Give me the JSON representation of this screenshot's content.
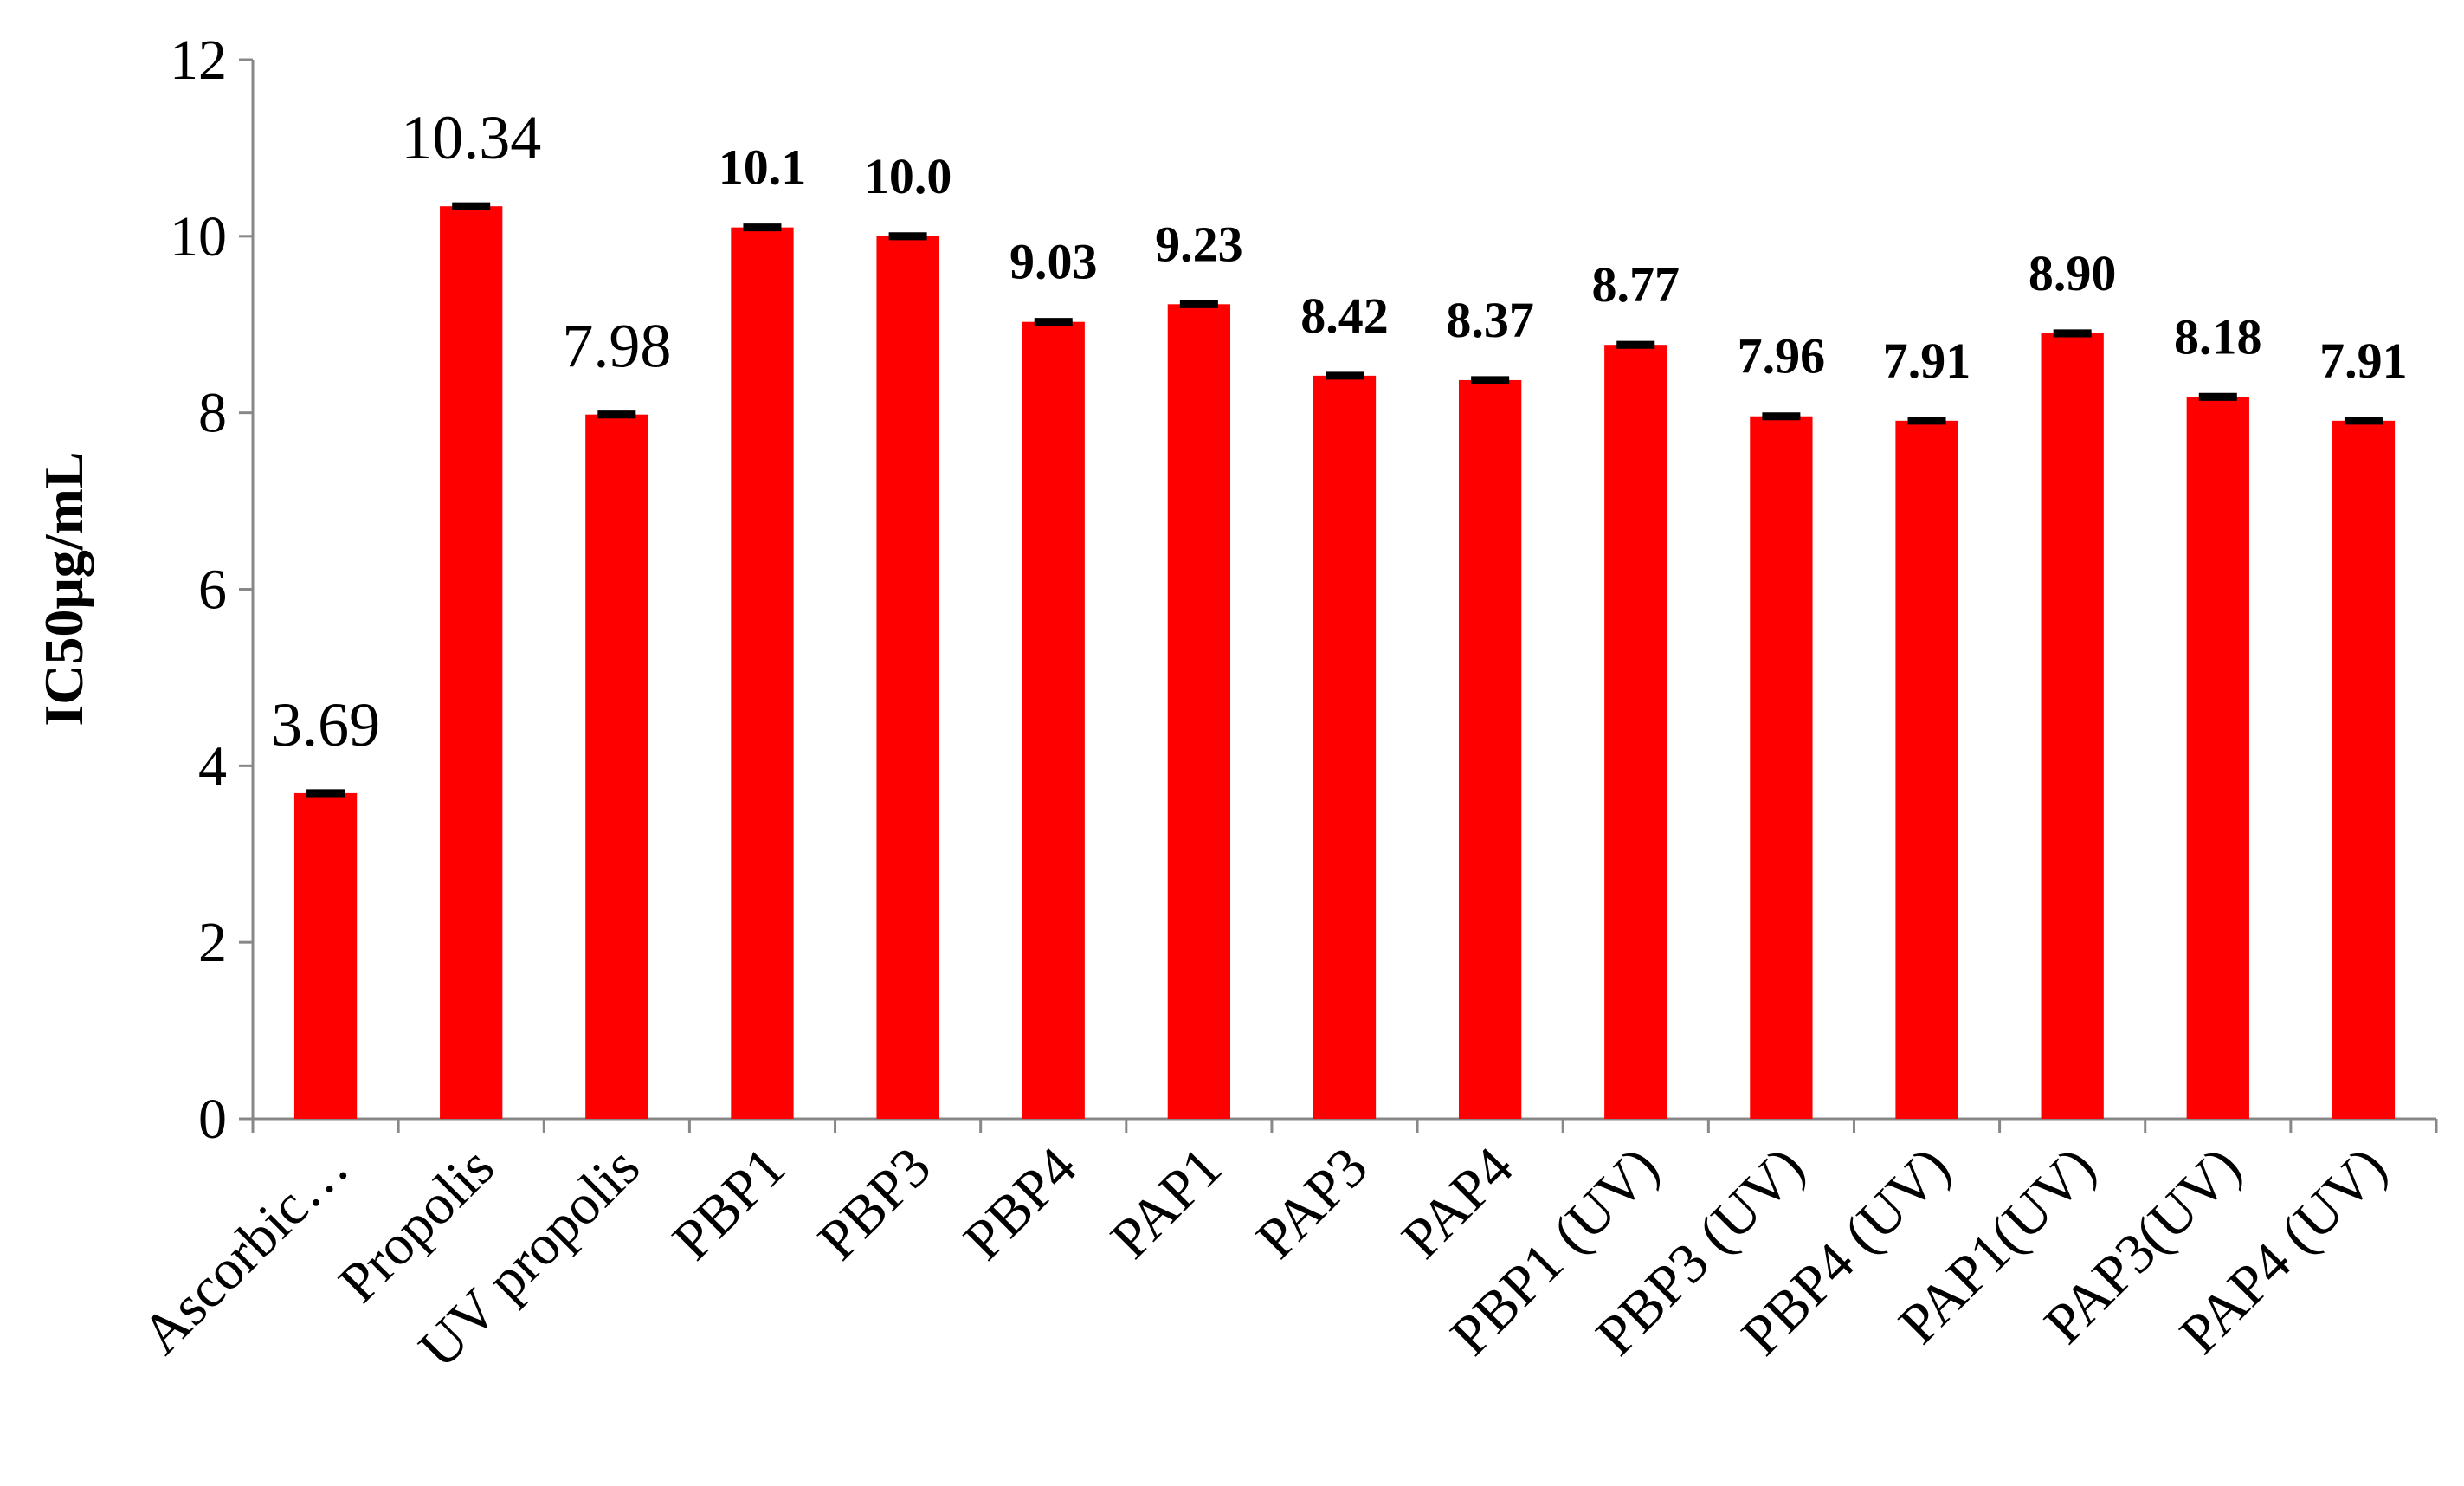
{
  "chart_data": {
    "type": "bar",
    "y_label": "IC50μg/mL",
    "categories": [
      "Ascorbic…",
      "Propolis",
      "UV propolis",
      "PBP1",
      "PBP3",
      "PBP4",
      "PAP1",
      "PAP3",
      "PAP4",
      "PBP1 (UV)",
      "PBP3 (UV)",
      "PBP4 (UV)",
      "PAP1(UV)",
      "PAP3(UV)",
      "PAP4 (UV)"
    ],
    "values": [
      3.69,
      10.34,
      7.98,
      10.1,
      10.0,
      9.03,
      9.23,
      8.42,
      8.37,
      8.77,
      7.96,
      7.91,
      8.9,
      8.18,
      7.91
    ],
    "value_labels": [
      "3.69",
      "10.34",
      "7.98",
      "10.1",
      "10.0",
      "9.03",
      "9.23",
      "8.42",
      "8.37",
      "8.77",
      "7.96",
      "7.91",
      "8.90",
      "8.18",
      "7.91"
    ],
    "value_label_weights": [
      "normal",
      "normal",
      "normal",
      "bold",
      "bold",
      "bold",
      "bold",
      "bold",
      "bold",
      "bold",
      "bold",
      "bold",
      "bold",
      "bold",
      "bold"
    ],
    "errors": [
      0.02,
      0.02,
      0.02,
      0.02,
      0.02,
      0.02,
      0.02,
      0.02,
      0.02,
      0.02,
      0.02,
      0.02,
      0.02,
      0.02,
      0.02
    ],
    "color": "#ff0000",
    "error_color": "#000000",
    "ylim": [
      0,
      12
    ],
    "yticks": [
      0,
      2,
      4,
      6,
      8,
      10,
      12
    ],
    "grid": false
  }
}
